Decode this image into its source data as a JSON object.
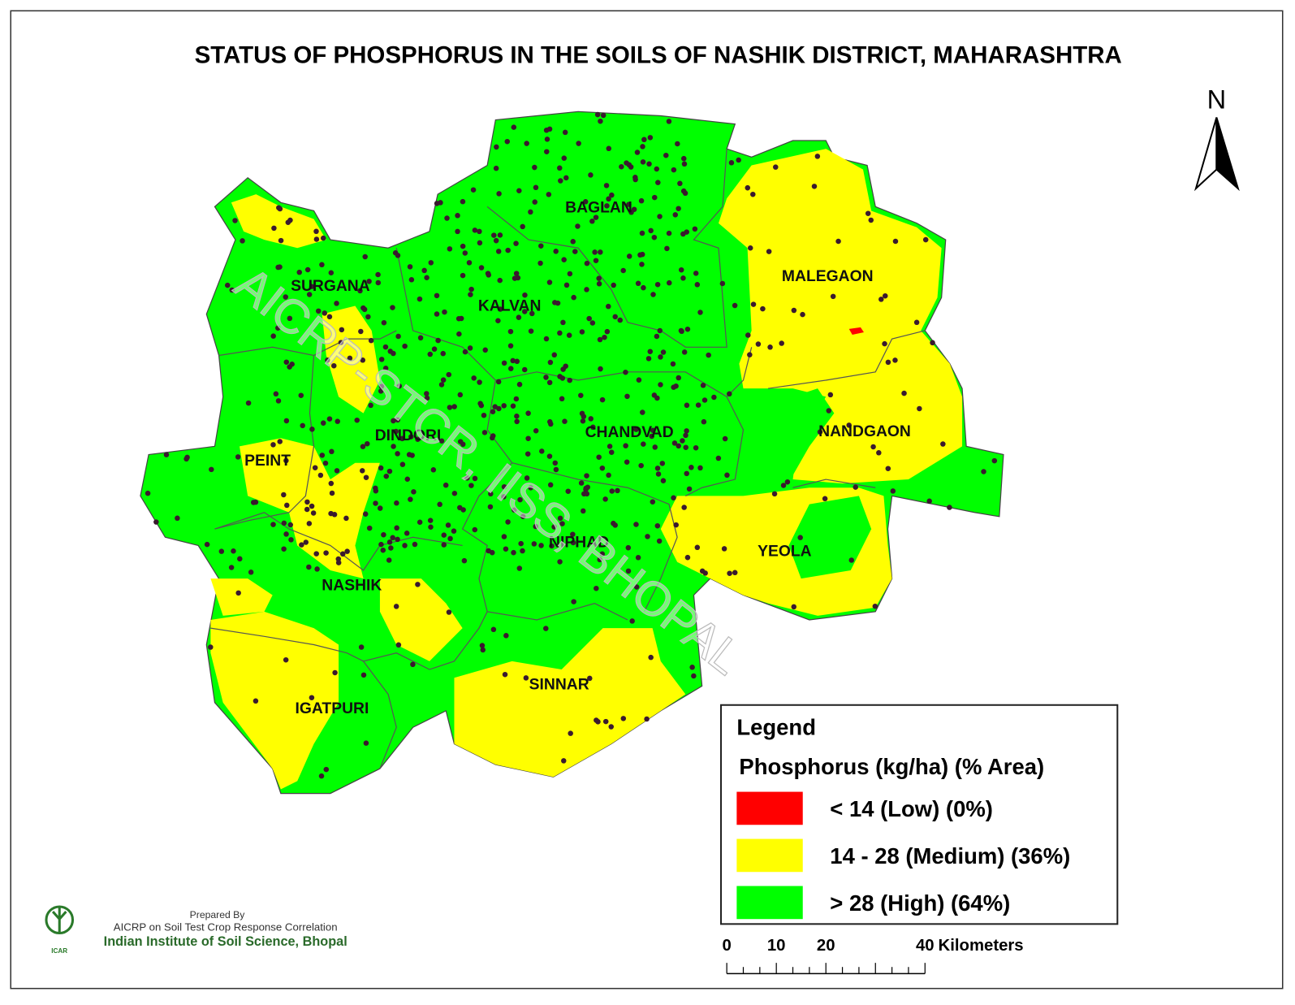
{
  "title": "STATUS OF PHOSPHORUS IN THE SOILS OF NASHIK DISTRICT, MAHARASHTRA",
  "north_arrow": "N",
  "watermark": "AICRP-STCR, IISS, BHOPAL",
  "districts": [
    "BAGLAN",
    "MALEGAON",
    "SURGANA",
    "KALVAN",
    "DINDORI",
    "CHANDVAD",
    "NANDGAON",
    "PEINT",
    "NIPHAD",
    "YEOLA",
    "NASHIK",
    "SINNAR",
    "IGATPURI"
  ],
  "legend": {
    "title": "Legend",
    "subtitle": "Phosphorus  (kg/ha) (% Area)",
    "items": [
      {
        "label": "< 14 (Low) (0%)",
        "color": "#ff0000"
      },
      {
        "label": "14 - 28 (Medium) (36%)",
        "color": "#ffff00"
      },
      {
        "label": "> 28 (High) (64%)",
        "color": "#00ff00"
      }
    ]
  },
  "scale_bar": {
    "ticks": [
      "0",
      "10",
      "20",
      "40"
    ],
    "unit": "Kilometers"
  },
  "credit": {
    "line1": "Prepared By",
    "line2": "AICRP on Soil Test Crop Response Correlation",
    "line3": "Indian Institute of Soil Science, Bhopal",
    "logo_text": "ICAR"
  }
}
